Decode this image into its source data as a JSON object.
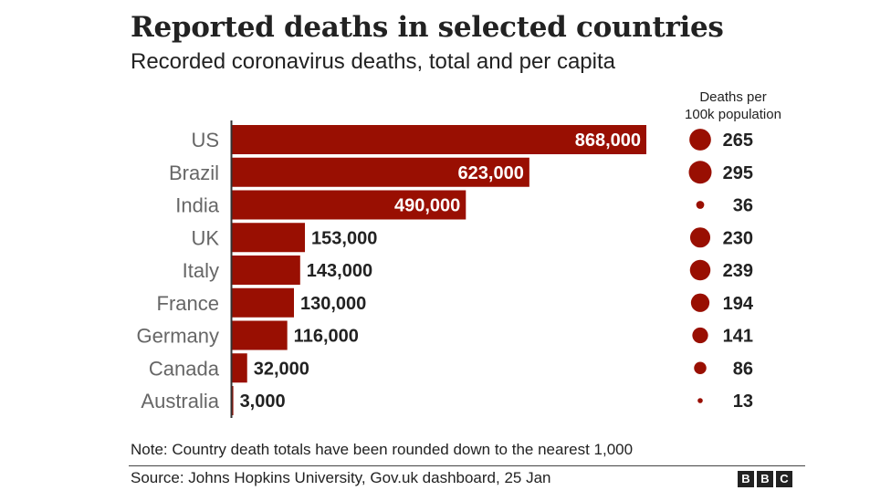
{
  "title": "Reported deaths in selected countries",
  "subtitle": "Recorded coronavirus deaths, total and per capita",
  "per_capita_header": [
    "Deaths per",
    "100k population"
  ],
  "note": "Note: Country death totals have been rounded down to the nearest 1,000",
  "source": "Source: Johns Hopkins University, Gov.uk dashboard, 25 Jan",
  "logo": [
    "B",
    "B",
    "C"
  ],
  "colors": {
    "bar": "#990f02",
    "dot": "#990f02",
    "text": "#222222",
    "label": "#666666"
  },
  "chart_data": {
    "type": "bar",
    "orientation": "horizontal",
    "categories": [
      "US",
      "Brazil",
      "India",
      "UK",
      "Italy",
      "France",
      "Germany",
      "Canada",
      "Australia"
    ],
    "series": [
      {
        "name": "",
        "values": [
          868000,
          623000,
          490000,
          153000,
          143000,
          130000,
          116000,
          32000,
          3000
        ],
        "labels": [
          "868,000",
          "623,000",
          "490,000",
          "153,000",
          "143,000",
          "130,000",
          "116,000",
          "32,000",
          "3,000"
        ]
      },
      {
        "name": "Deaths per 100k population",
        "values": [
          265,
          295,
          36,
          230,
          239,
          194,
          141,
          86,
          13
        ],
        "labels": [
          "265",
          "295",
          "36",
          "230",
          "239",
          "194",
          "141",
          "86",
          "13"
        ]
      }
    ],
    "xlim": [
      0,
      868000
    ],
    "grid": false,
    "legend": "none"
  }
}
